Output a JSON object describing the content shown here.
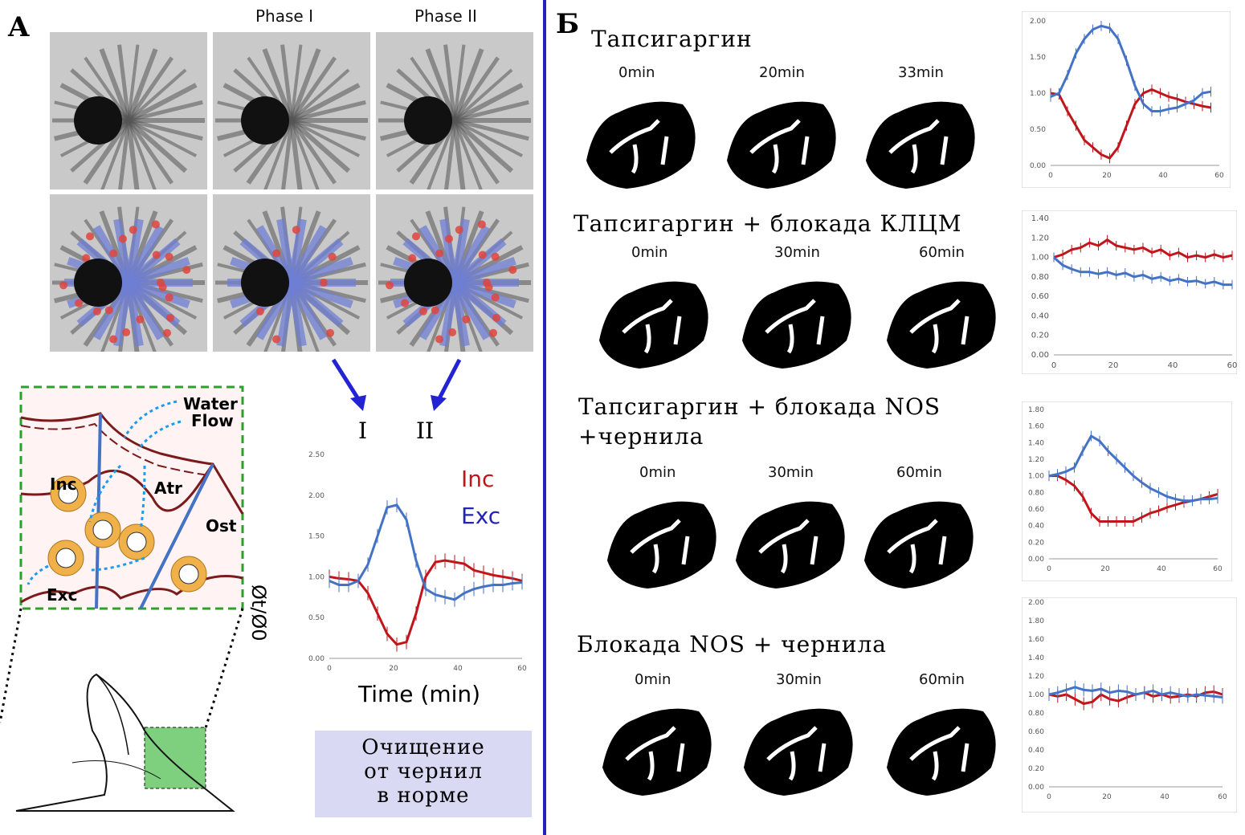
{
  "panels": {
    "a_label": "A",
    "b_label": "Б",
    "phase_headers": [
      "Phase I",
      "Phase II"
    ],
    "arrow_labels": [
      "I",
      "II"
    ],
    "note": [
      "Очищение",
      "от чернил",
      "в норме"
    ]
  },
  "diagram": {
    "labels": [
      "Water",
      "Flow",
      "Inc",
      "Atr",
      "Ost",
      "Exc"
    ]
  },
  "conditions": [
    {
      "title": "Тапсигаргин",
      "times": [
        "0min",
        "20min",
        "33min"
      ]
    },
    {
      "title": "Тапсигаргин + блокада КЛЦМ",
      "times": [
        "0min",
        "30min",
        "60min"
      ]
    },
    {
      "title": "Тапсигаргин + блокада NOS",
      "title2": "+чернила",
      "times": [
        "0min",
        "30min",
        "60min"
      ]
    },
    {
      "title": "Блокада NOS + чернила",
      "times": [
        "0min",
        "30min",
        "60min"
      ]
    }
  ],
  "colors": {
    "inc": "#c0151b",
    "exc": "#4472c4",
    "blue_arrow": "#2323d4",
    "divider": "#2323b4"
  },
  "chart_data": [
    {
      "type": "line",
      "xlabel": "Time (min)",
      "ylabel": "Øt/Ø0",
      "xlim": [
        0,
        60
      ],
      "ylim": [
        0,
        2.5
      ],
      "xticks": [
        0,
        20,
        40,
        60
      ],
      "yticks": [
        0.0,
        0.5,
        1.0,
        1.5,
        2.0,
        2.5
      ],
      "legend": "top-right",
      "x": [
        0,
        3,
        6,
        9,
        12,
        15,
        18,
        21,
        24,
        27,
        30,
        33,
        36,
        39,
        42,
        45,
        48,
        51,
        54,
        57,
        60
      ],
      "series": [
        {
          "name": "Inc",
          "values": [
            1.0,
            0.98,
            0.97,
            0.95,
            0.8,
            0.55,
            0.3,
            0.17,
            0.2,
            0.55,
            1.0,
            1.18,
            1.2,
            1.18,
            1.16,
            1.08,
            1.05,
            1.02,
            1.0,
            0.98,
            0.95
          ]
        },
        {
          "name": "Exc",
          "values": [
            0.95,
            0.9,
            0.9,
            0.95,
            1.15,
            1.5,
            1.85,
            1.88,
            1.7,
            1.2,
            0.85,
            0.78,
            0.75,
            0.72,
            0.8,
            0.85,
            0.88,
            0.9,
            0.9,
            0.92,
            0.93
          ]
        }
      ]
    },
    {
      "type": "line",
      "xlim": [
        0,
        60
      ],
      "ylim": [
        0,
        2.0
      ],
      "xticks": [
        0,
        20,
        40,
        60
      ],
      "yticks": [
        0.0,
        0.5,
        1.0,
        1.5,
        2.0
      ],
      "x": [
        0,
        3,
        6,
        9,
        12,
        15,
        18,
        21,
        24,
        27,
        30,
        33,
        36,
        39,
        42,
        45,
        48,
        51,
        54,
        57
      ],
      "series": [
        {
          "values": [
            1.0,
            0.98,
            0.75,
            0.55,
            0.35,
            0.25,
            0.15,
            0.1,
            0.25,
            0.55,
            0.85,
            1.0,
            1.05,
            1.0,
            0.95,
            0.92,
            0.88,
            0.85,
            0.82,
            0.8
          ]
        },
        {
          "values": [
            0.95,
            1.0,
            1.25,
            1.55,
            1.75,
            1.88,
            1.93,
            1.9,
            1.75,
            1.45,
            1.1,
            0.85,
            0.75,
            0.75,
            0.78,
            0.8,
            0.85,
            0.9,
            1.0,
            1.02
          ]
        }
      ]
    },
    {
      "type": "line",
      "xlim": [
        0,
        60
      ],
      "ylim": [
        0,
        1.4
      ],
      "xticks": [
        0,
        20,
        40,
        60
      ],
      "yticks": [
        0.0,
        0.2,
        0.4,
        0.6,
        0.8,
        1.0,
        1.2,
        1.4
      ],
      "x": [
        0,
        3,
        6,
        9,
        12,
        15,
        18,
        21,
        24,
        27,
        30,
        33,
        36,
        39,
        42,
        45,
        48,
        51,
        54,
        57,
        60
      ],
      "series": [
        {
          "values": [
            1.0,
            1.03,
            1.08,
            1.1,
            1.15,
            1.12,
            1.18,
            1.12,
            1.1,
            1.08,
            1.1,
            1.05,
            1.08,
            1.02,
            1.05,
            1.0,
            1.02,
            1.0,
            1.03,
            1.0,
            1.02
          ]
        },
        {
          "values": [
            1.0,
            0.92,
            0.88,
            0.85,
            0.85,
            0.83,
            0.85,
            0.82,
            0.84,
            0.8,
            0.82,
            0.78,
            0.8,
            0.76,
            0.78,
            0.75,
            0.76,
            0.73,
            0.75,
            0.72,
            0.72
          ]
        }
      ]
    },
    {
      "type": "line",
      "xlim": [
        0,
        60
      ],
      "ylim": [
        0,
        1.8
      ],
      "xticks": [
        0,
        20,
        40,
        60
      ],
      "yticks": [
        0.0,
        0.2,
        0.4,
        0.6,
        0.8,
        1.0,
        1.2,
        1.4,
        1.6,
        1.8
      ],
      "x": [
        0,
        3,
        6,
        9,
        12,
        15,
        18,
        21,
        24,
        27,
        30,
        33,
        36,
        39,
        42,
        45,
        48,
        51,
        54,
        57,
        60
      ],
      "series": [
        {
          "values": [
            1.0,
            1.0,
            0.95,
            0.88,
            0.75,
            0.55,
            0.45,
            0.45,
            0.45,
            0.45,
            0.45,
            0.5,
            0.55,
            0.58,
            0.62,
            0.65,
            0.68,
            0.7,
            0.72,
            0.75,
            0.78
          ]
        },
        {
          "values": [
            1.0,
            1.02,
            1.05,
            1.1,
            1.3,
            1.48,
            1.42,
            1.3,
            1.2,
            1.1,
            1.0,
            0.92,
            0.85,
            0.8,
            0.75,
            0.72,
            0.7,
            0.7,
            0.72,
            0.72,
            0.73
          ]
        }
      ]
    },
    {
      "type": "line",
      "xlim": [
        0,
        60
      ],
      "ylim": [
        0,
        2.0
      ],
      "xticks": [
        0,
        20,
        40,
        60
      ],
      "yticks": [
        0.0,
        0.2,
        0.4,
        0.6,
        0.8,
        1.0,
        1.2,
        1.4,
        1.6,
        1.8,
        2.0
      ],
      "x": [
        0,
        3,
        6,
        9,
        12,
        15,
        18,
        21,
        24,
        27,
        30,
        33,
        36,
        39,
        42,
        45,
        48,
        51,
        54,
        57,
        60
      ],
      "series": [
        {
          "values": [
            1.0,
            0.98,
            1.0,
            0.95,
            0.9,
            0.92,
            1.0,
            0.95,
            0.93,
            0.97,
            1.0,
            1.02,
            0.98,
            1.0,
            0.97,
            0.98,
            1.0,
            0.98,
            1.02,
            1.03,
            1.0
          ]
        },
        {
          "values": [
            1.0,
            1.02,
            1.05,
            1.08,
            1.05,
            1.04,
            1.06,
            1.02,
            1.04,
            1.03,
            1.0,
            1.02,
            1.04,
            1.0,
            1.02,
            1.0,
            0.98,
            1.0,
            0.99,
            0.98,
            0.97
          ]
        }
      ]
    }
  ]
}
